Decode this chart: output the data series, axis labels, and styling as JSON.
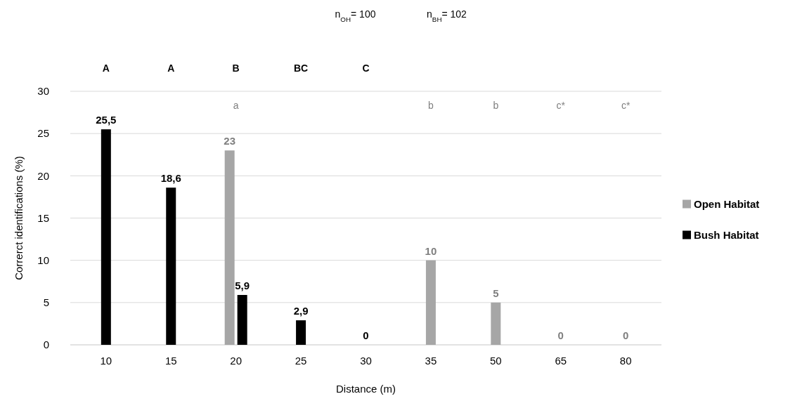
{
  "chart_data": {
    "type": "bar",
    "xlabel": "Distance (m)",
    "ylabel": "Correrct identifications (%)",
    "categories": [
      "10",
      "15",
      "20",
      "25",
      "30",
      "35",
      "50",
      "65",
      "80"
    ],
    "series": [
      {
        "name": "Open Habitat",
        "color": "#a6a6a6",
        "values": [
          null,
          null,
          23,
          null,
          null,
          10,
          5,
          0,
          0
        ],
        "value_labels": [
          null,
          null,
          "23",
          null,
          null,
          "10",
          "5",
          "0",
          "0"
        ]
      },
      {
        "name": "Bush Habitat",
        "color": "#000000",
        "values": [
          25.5,
          18.6,
          5.9,
          2.9,
          0,
          null,
          null,
          null,
          null
        ],
        "value_labels": [
          "25,5",
          "18,6",
          "5,9",
          "2,9",
          "0",
          null,
          null,
          null,
          null
        ]
      }
    ],
    "ylim": [
      0,
      30
    ],
    "yticks": [
      0,
      5,
      10,
      15,
      20,
      25,
      30
    ],
    "grid": "y",
    "legend": "right",
    "annotations": [
      "n$_{OH}$= 100",
      "n$_{BH}$= 102",
      "a",
      "b",
      "b",
      "c*",
      "c*",
      "A",
      "A",
      "B",
      "BC",
      "C"
    ]
  }
}
